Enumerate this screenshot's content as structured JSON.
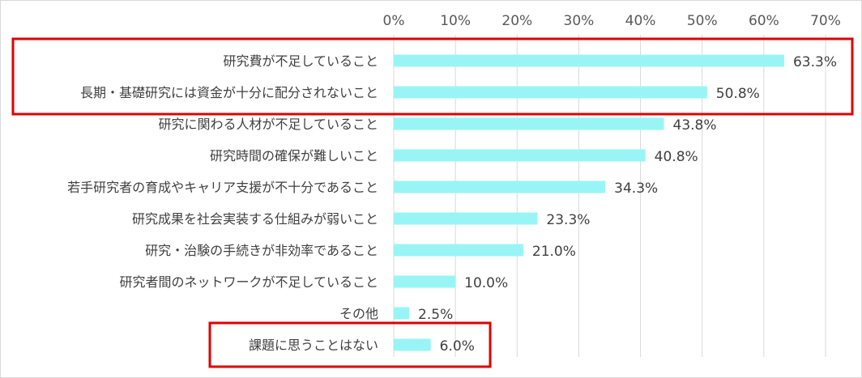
{
  "chart_data": {
    "type": "bar",
    "orientation": "horizontal",
    "title": "",
    "xlabel": "",
    "ylabel": "",
    "xlim": [
      0,
      70
    ],
    "x_ticks": [
      "0%",
      "10%",
      "20%",
      "30%",
      "40%",
      "50%",
      "60%",
      "70%"
    ],
    "grid": true,
    "bar_color": "#99f5f5",
    "highlight_color": "#e00000",
    "categories": [
      "研究費が不足していること",
      "長期・基礎研究には資金が十分に配分されないこと",
      "研究に関わる人材が不足していること",
      "研究時間の確保が難しいこと",
      "若手研究者の育成やキャリア支援が不十分であること",
      "研究成果を社会実装する仕組みが弱いこと",
      "研究・治験の手続きが非効率であること",
      "研究者間のネットワークが不足していること",
      "その他",
      "課題に思うことはない"
    ],
    "values": [
      63.3,
      50.8,
      43.8,
      40.8,
      34.3,
      23.3,
      21.0,
      10.0,
      2.5,
      6.0
    ],
    "value_labels": [
      "63.3%",
      "50.8%",
      "43.8%",
      "40.8%",
      "34.3%",
      "23.3%",
      "21.0%",
      "10.0%",
      "2.5%",
      "6.0%"
    ],
    "highlighted_groups": [
      [
        0,
        1
      ],
      [
        9
      ]
    ]
  }
}
